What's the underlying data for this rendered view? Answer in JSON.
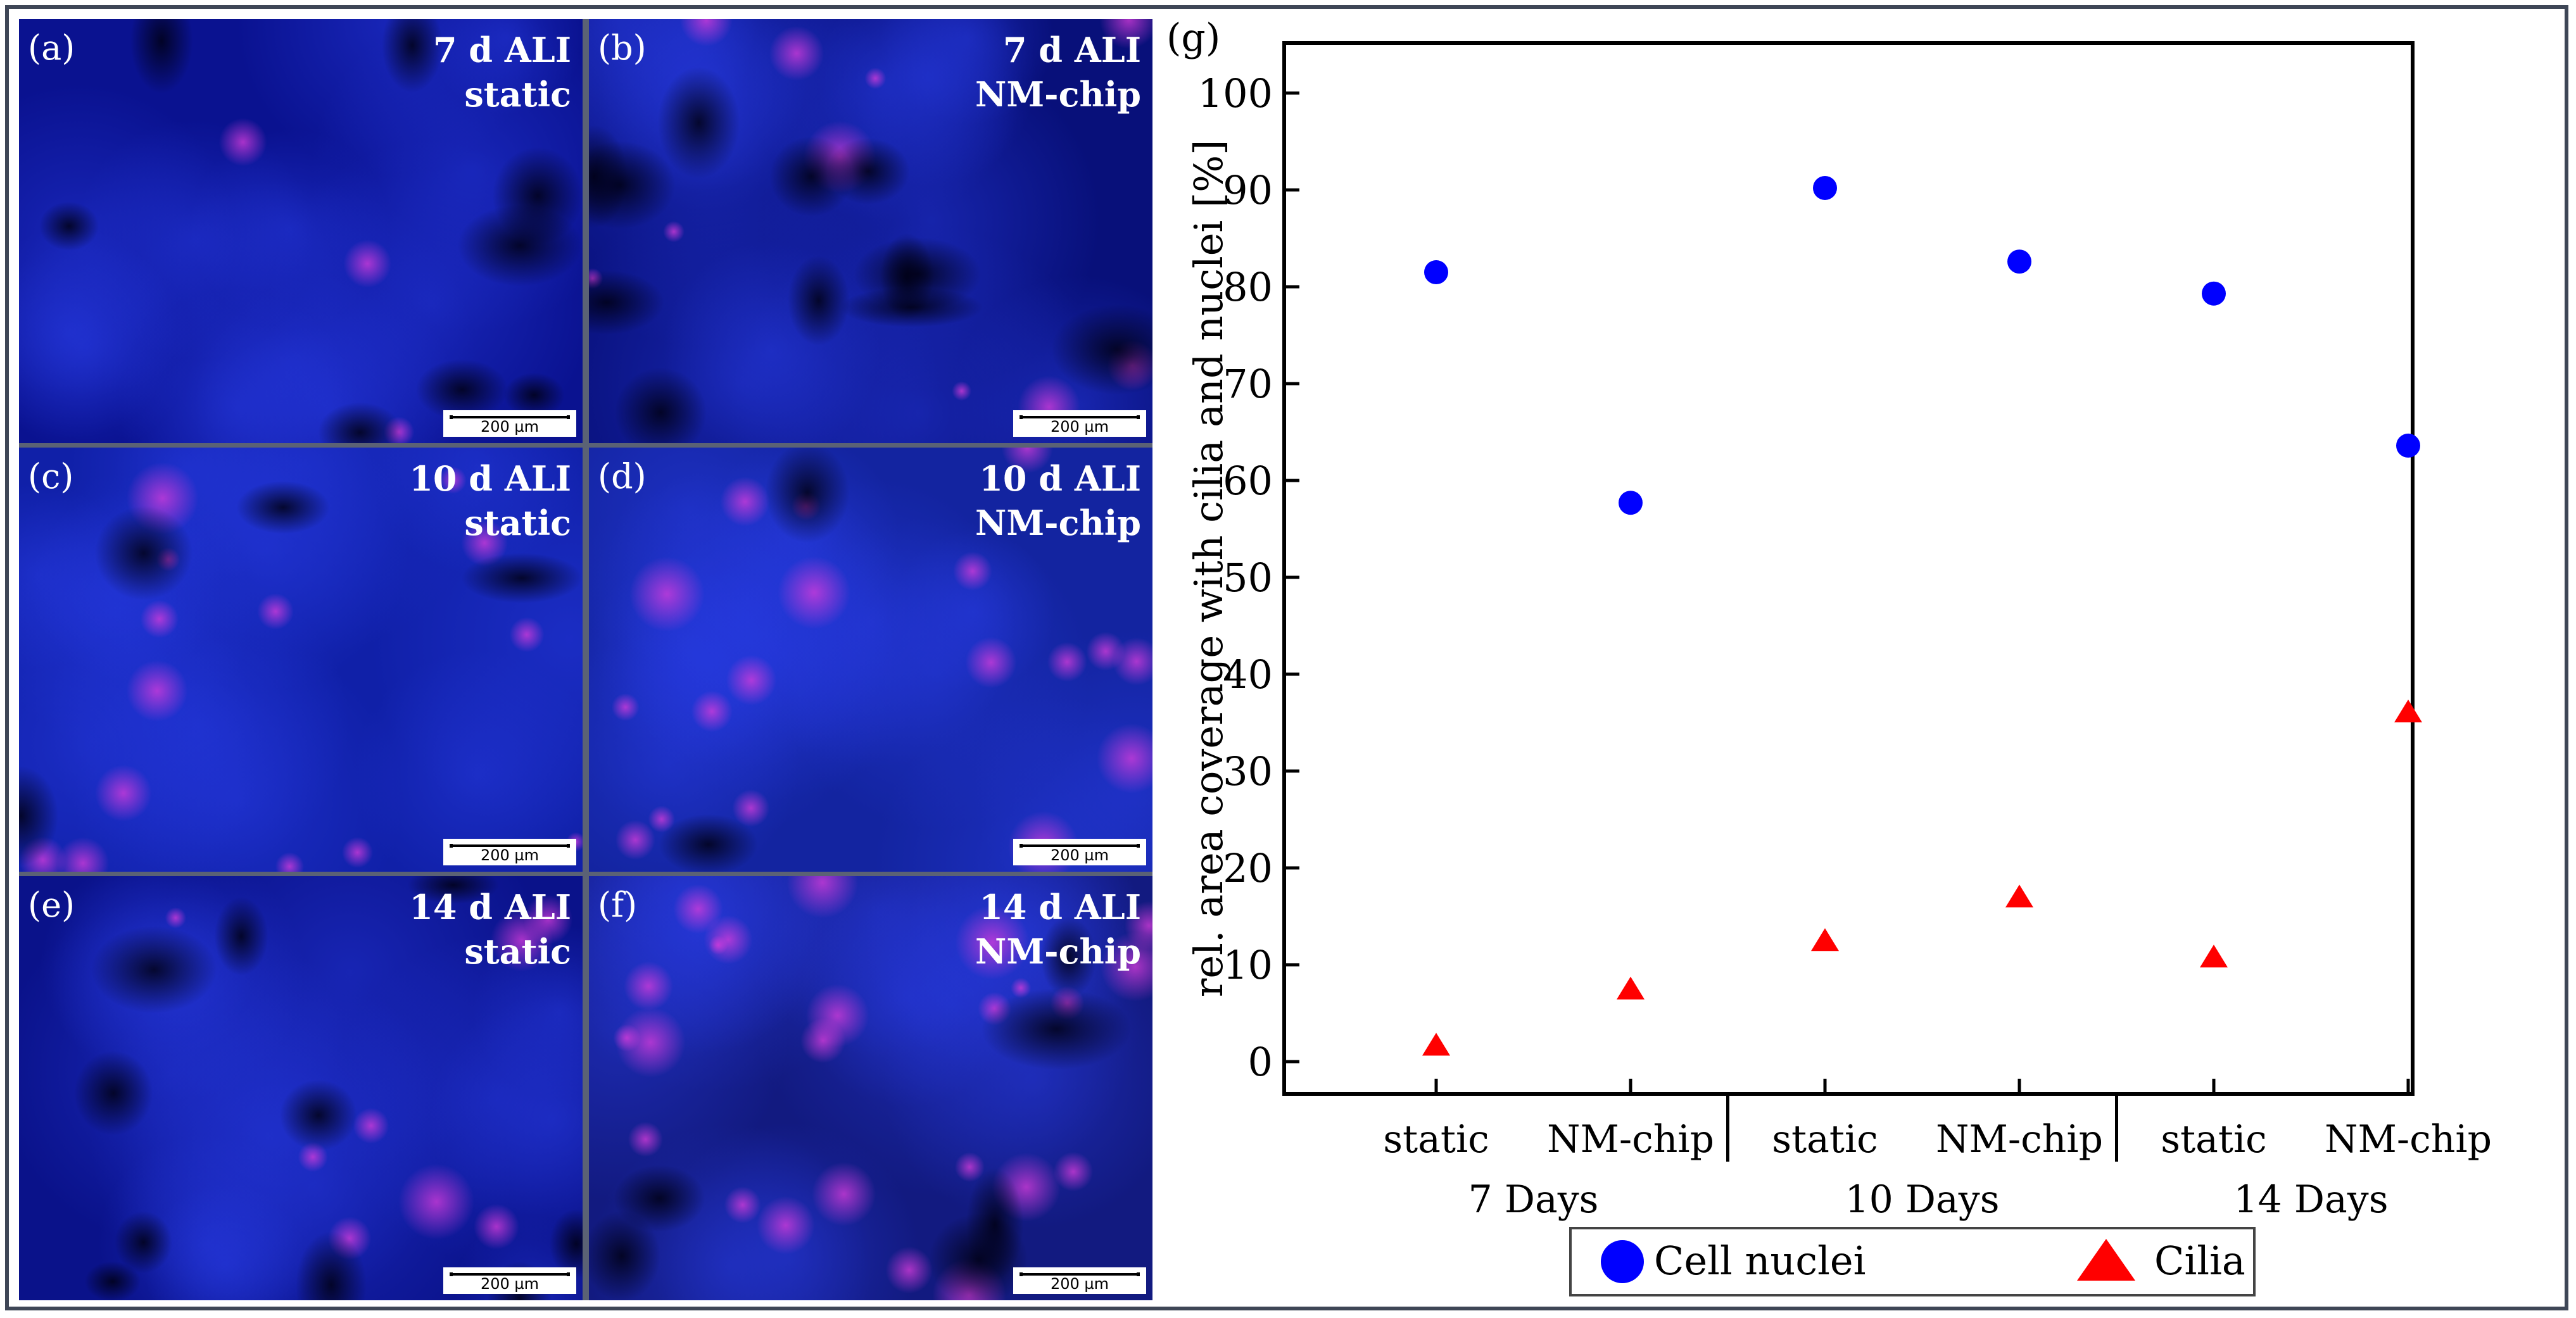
{
  "panels": [
    {
      "letter": "(a)",
      "cond1": "7 d ALI",
      "cond2": "static",
      "scale": "200 µm"
    },
    {
      "letter": "(b)",
      "cond1": "7 d ALI",
      "cond2": "NM-chip",
      "scale": "200 µm"
    },
    {
      "letter": "(c)",
      "cond1": "10 d ALI",
      "cond2": "static",
      "scale": "200 µm"
    },
    {
      "letter": "(d)",
      "cond1": "10 d ALI",
      "cond2": "NM-chip",
      "scale": "200 µm"
    },
    {
      "letter": "(e)",
      "cond1": "14 d ALI",
      "cond2": "static",
      "scale": "200 µm"
    },
    {
      "letter": "(f)",
      "cond1": "14 d ALI",
      "cond2": "NM-chip",
      "scale": "200 µm"
    }
  ],
  "chart_data": {
    "type": "scatter",
    "panel_label": "(g)",
    "ylabel": "rel. area coverage with cilia and nuclei [%]",
    "ylim": [
      0,
      100
    ],
    "yticks": [
      0,
      10,
      20,
      30,
      40,
      50,
      60,
      70,
      80,
      90,
      100
    ],
    "categories": [
      "static",
      "NM-chip",
      "static",
      "NM-chip",
      "static",
      "NM-chip"
    ],
    "groups": [
      "7 Days",
      "10 Days",
      "14 Days"
    ],
    "series": [
      {
        "name": "Cell nuclei",
        "marker": "circle",
        "color": "#0000ff",
        "values": [
          81.5,
          57.7,
          90.2,
          82.6,
          79.3,
          63.6
        ]
      },
      {
        "name": "Cilia",
        "marker": "triangle",
        "color": "#ff0000",
        "values": [
          1.8,
          7.6,
          12.6,
          17.1,
          10.9,
          36.2
        ]
      }
    ]
  }
}
